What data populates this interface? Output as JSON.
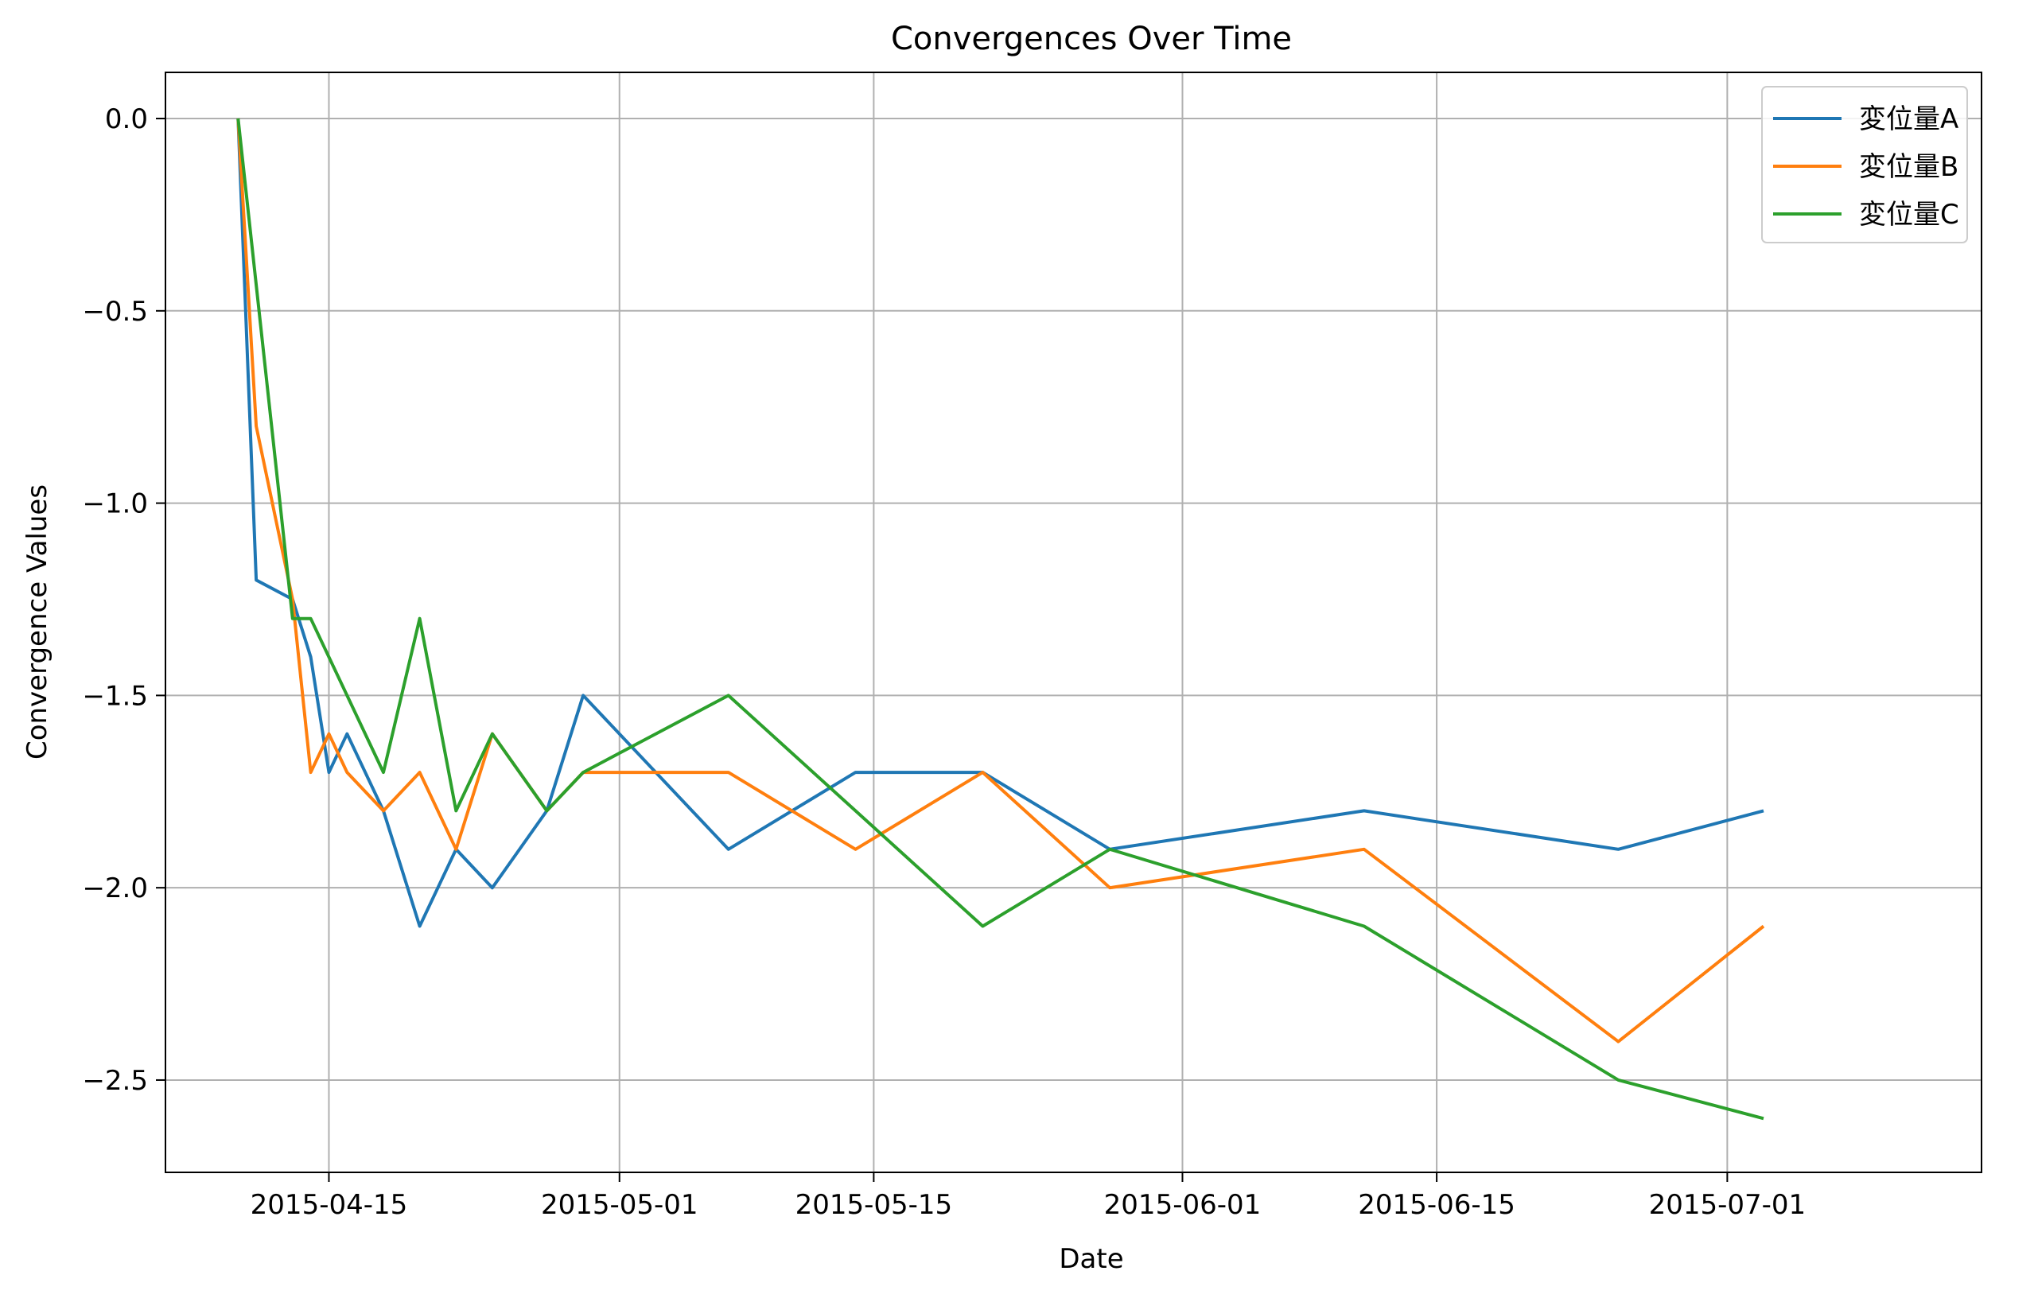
{
  "chart_data": {
    "type": "line",
    "title": "Convergences Over Time",
    "xlabel": "Date",
    "ylabel": "Convergence Values",
    "x_axis_type": "date",
    "xlim": [
      "2015-04-06",
      "2015-07-15"
    ],
    "ylim": [
      -2.74,
      0.12
    ],
    "x_ticks": [
      "2015-04-15",
      "2015-05-01",
      "2015-05-15",
      "2015-06-01",
      "2015-06-15",
      "2015-07-01"
    ],
    "y_ticks": [
      0.0,
      -0.5,
      -1.0,
      -1.5,
      -2.0,
      -2.5
    ],
    "y_tick_labels": [
      "0.0",
      "−0.5",
      "−1.0",
      "−1.5",
      "−2.0",
      "−2.5"
    ],
    "grid": true,
    "legend_position": "top-right",
    "series": [
      {
        "name": "変位量A",
        "color": "#1f77b4",
        "points": [
          [
            "2015-04-10",
            0.0
          ],
          [
            "2015-04-11",
            -1.2
          ],
          [
            "2015-04-13",
            -1.25
          ],
          [
            "2015-04-14",
            -1.4
          ],
          [
            "2015-04-15",
            -1.7
          ],
          [
            "2015-04-16",
            -1.6
          ],
          [
            "2015-04-18",
            -1.8
          ],
          [
            "2015-04-20",
            -2.1
          ],
          [
            "2015-04-22",
            -1.9
          ],
          [
            "2015-04-24",
            -2.0
          ],
          [
            "2015-04-27",
            -1.8
          ],
          [
            "2015-04-29",
            -1.5
          ],
          [
            "2015-05-07",
            -1.9
          ],
          [
            "2015-05-14",
            -1.7
          ],
          [
            "2015-05-21",
            -1.7
          ],
          [
            "2015-05-28",
            -1.9
          ],
          [
            "2015-06-11",
            -1.8
          ],
          [
            "2015-06-25",
            -1.9
          ],
          [
            "2015-07-03",
            -1.8
          ]
        ]
      },
      {
        "name": "変位量B",
        "color": "#ff7f0e",
        "points": [
          [
            "2015-04-10",
            0.0
          ],
          [
            "2015-04-11",
            -0.8
          ],
          [
            "2015-04-13",
            -1.25
          ],
          [
            "2015-04-14",
            -1.7
          ],
          [
            "2015-04-15",
            -1.6
          ],
          [
            "2015-04-16",
            -1.7
          ],
          [
            "2015-04-18",
            -1.8
          ],
          [
            "2015-04-20",
            -1.7
          ],
          [
            "2015-04-22",
            -1.9
          ],
          [
            "2015-04-24",
            -1.6
          ],
          [
            "2015-04-27",
            -1.8
          ],
          [
            "2015-04-29",
            -1.7
          ],
          [
            "2015-05-07",
            -1.7
          ],
          [
            "2015-05-14",
            -1.9
          ],
          [
            "2015-05-21",
            -1.7
          ],
          [
            "2015-05-28",
            -2.0
          ],
          [
            "2015-06-11",
            -1.9
          ],
          [
            "2015-06-25",
            -2.4
          ],
          [
            "2015-07-03",
            -2.1
          ]
        ]
      },
      {
        "name": "変位量C",
        "color": "#2ca02c",
        "points": [
          [
            "2015-04-10",
            0.0
          ],
          [
            "2015-04-13",
            -1.3
          ],
          [
            "2015-04-14",
            -1.3
          ],
          [
            "2015-04-18",
            -1.7
          ],
          [
            "2015-04-20",
            -1.3
          ],
          [
            "2015-04-22",
            -1.8
          ],
          [
            "2015-04-24",
            -1.6
          ],
          [
            "2015-04-27",
            -1.8
          ],
          [
            "2015-04-29",
            -1.7
          ],
          [
            "2015-05-07",
            -1.5
          ],
          [
            "2015-05-21",
            -2.1
          ],
          [
            "2015-05-28",
            -1.9
          ],
          [
            "2015-06-11",
            -2.1
          ],
          [
            "2015-06-25",
            -2.5
          ],
          [
            "2015-07-03",
            -2.6
          ]
        ]
      }
    ]
  }
}
